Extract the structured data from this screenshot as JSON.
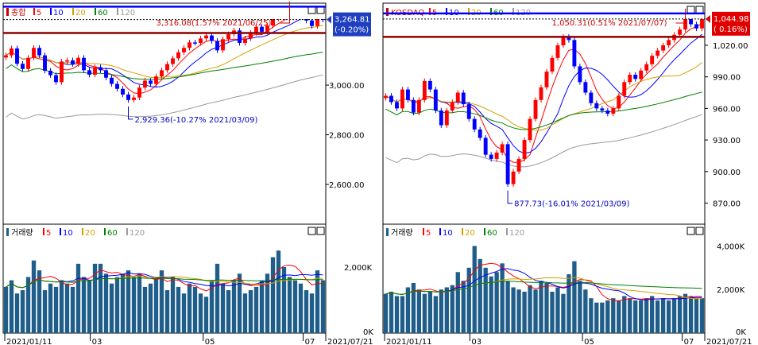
{
  "chart_data": [
    {
      "type": "candlestick",
      "market": "종합",
      "moving_averages": [
        "5",
        "10",
        "20",
        "60",
        "120"
      ],
      "ma_colors": [
        "#ff0000",
        "#0000ff",
        "#d4a000",
        "#008000",
        "#999999"
      ],
      "price_ylim": [
        2440,
        3330
      ],
      "price_ticks": [
        2600,
        2800,
        3000
      ],
      "price_tick_labels": [
        "2,600.00",
        "2,800.00",
        "3,000.00"
      ],
      "current_price": "3,264.81",
      "current_change": "(-0.20%)",
      "resistance": 3316.08,
      "support": 3210,
      "high_annotation": "3,316.08(1.57% 2021/06/25)",
      "low_annotation": "2,929.36(-10.27% 2021/03/09)",
      "volume_title": "거래량",
      "volume_ylim": [
        0,
        3300
      ],
      "volume_ticks": [
        0,
        2000
      ],
      "volume_tick_labels": [
        "0K",
        "2,000K"
      ],
      "x_labels": [
        "2021/01/11",
        "03",
        "05",
        "07"
      ],
      "x_end_label": "2021/07/21",
      "series": [
        {
          "name": "close",
          "values": [
            3120,
            3148,
            3086,
            3065,
            3110,
            3150,
            3120,
            3058,
            3040,
            3012,
            3095,
            3100,
            3085,
            3110,
            3060,
            3042,
            3072,
            3060,
            3030,
            3005,
            2985,
            2962,
            2940,
            2950,
            2990,
            3018,
            3005,
            3035,
            3060,
            3085,
            3108,
            3132,
            3150,
            3172,
            3170,
            3188,
            3200,
            3178,
            3140,
            3185,
            3205,
            3220,
            3170,
            3188,
            3210,
            3235,
            3215,
            3240,
            3268,
            3280,
            3300,
            3316,
            3292,
            3305,
            3260,
            3238,
            3285,
            3264
          ]
        },
        {
          "name": "volume",
          "values": [
            1400,
            1600,
            1200,
            1300,
            1700,
            2200,
            1900,
            1300,
            1500,
            1400,
            1600,
            1500,
            1400,
            2100,
            1700,
            1600,
            2100,
            2100,
            1800,
            1500,
            1700,
            1800,
            1900,
            1700,
            1800,
            1400,
            1500,
            1700,
            1900,
            1300,
            1700,
            1400,
            1200,
            1500,
            1400,
            1200,
            1100,
            1600,
            2100,
            1500,
            1300,
            1600,
            1800,
            1200,
            1300,
            1400,
            1600,
            1800,
            2300,
            2500,
            2000,
            1700,
            1600,
            1500,
            1300,
            1200,
            1900,
            1600
          ]
        }
      ]
    },
    {
      "type": "candlestick",
      "market": "KOSDAQ",
      "moving_averages": [
        "5",
        "10",
        "20",
        "60",
        "120"
      ],
      "ma_colors": [
        "#ff0000",
        "#0000ff",
        "#d4a000",
        "#008000",
        "#999999"
      ],
      "price_ylim": [
        850,
        1060
      ],
      "price_ticks": [
        870,
        900,
        930,
        960,
        990,
        1020
      ],
      "price_tick_labels": [
        "870.00",
        "900.00",
        "930.00",
        "960.00",
        "990.00",
        "1,020.00"
      ],
      "current_price": "1,044.98",
      "current_change": "( 0.16%)",
      "resistance": 1050.31,
      "support": 1028,
      "high_annotation": "1,050.31(0.51% 2021/07/07)",
      "low_annotation": "877.73(-16.01% 2021/03/09)",
      "volume_title": "거래량",
      "volume_ylim": [
        0,
        5000
      ],
      "volume_ticks": [
        0,
        2000,
        4000
      ],
      "volume_tick_labels": [
        "0K",
        "2,000K",
        "4,000K"
      ],
      "x_labels": [
        "2021/01/11",
        "03",
        "05",
        "07"
      ],
      "x_end_label": "2021/07/21",
      "series": [
        {
          "name": "close",
          "values": [
            972,
            966,
            960,
            978,
            968,
            956,
            968,
            986,
            978,
            958,
            944,
            958,
            966,
            975,
            964,
            950,
            940,
            932,
            916,
            912,
            918,
            926,
            888,
            900,
            912,
            930,
            950,
            968,
            980,
            995,
            1008,
            1020,
            1028,
            1025,
            1000,
            985,
            975,
            965,
            960,
            958,
            955,
            960,
            972,
            985,
            992,
            988,
            996,
            1002,
            1010,
            1015,
            1020,
            1025,
            1030,
            1035,
            1048,
            1040,
            1036,
            1045
          ]
        },
        {
          "name": "volume",
          "values": [
            1800,
            1900,
            1700,
            1700,
            2100,
            2300,
            2000,
            1800,
            1900,
            1700,
            2000,
            2100,
            2200,
            2800,
            2400,
            3000,
            4000,
            3400,
            3000,
            2600,
            2800,
            3200,
            2400,
            2100,
            2000,
            1900,
            2200,
            2000,
            2400,
            2300,
            1900,
            2100,
            1800,
            2700,
            3300,
            2400,
            2000,
            1600,
            1400,
            1400,
            1500,
            1600,
            1500,
            1700,
            1600,
            1500,
            1500,
            1600,
            1700,
            1500,
            1600,
            1500,
            1600,
            1700,
            1800,
            1700,
            1600,
            1600
          ]
        }
      ]
    }
  ]
}
